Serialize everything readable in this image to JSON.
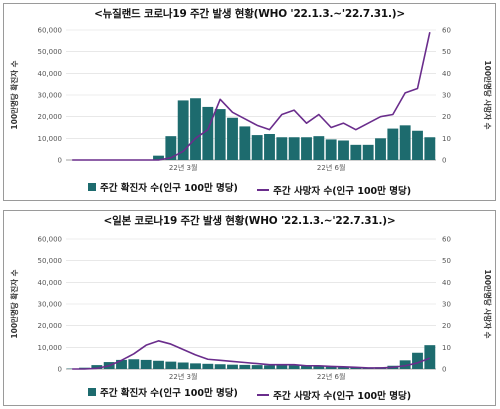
{
  "chart_data": [
    {
      "type": "bar",
      "title": "<뉴질랜드 코로나19 주간 발생 현황(WHO '22.1.3.~'22.7.31.)>",
      "ylabel": "100만명당 확진자 수",
      "y2label": "100만명당 사망자 수",
      "ylim": [
        0,
        60000
      ],
      "y2lim": [
        0,
        60
      ],
      "yticks": [
        "0",
        "10,000",
        "20,000",
        "30,000",
        "40,000",
        "50,000",
        "60,000"
      ],
      "y2ticks": [
        "0",
        "10",
        "20",
        "30",
        "40",
        "50",
        "60"
      ],
      "xticks": [
        {
          "label": "22년 3월",
          "index": 9
        },
        {
          "label": "22년 6월",
          "index": 21
        }
      ],
      "grid": true,
      "legend_position": "bottom",
      "series": [
        {
          "name": "주간 확진자 수(인구 100만 명당)",
          "kind": "bar",
          "axis": "left",
          "color": "#1d6b6e",
          "values": [
            0,
            0,
            0,
            0,
            0,
            0,
            0,
            2000,
            11000,
            27500,
            28500,
            24500,
            23500,
            19500,
            15500,
            11500,
            12000,
            10500,
            10500,
            10500,
            11000,
            9500,
            9000,
            7000,
            7000,
            10000,
            14500,
            16000,
            13500,
            10500
          ]
        },
        {
          "name": "주간 사망자 수(인구 100만 명당)",
          "kind": "line",
          "axis": "right",
          "color": "#6a2d8c",
          "values": [
            0,
            0,
            0,
            0,
            0,
            0,
            0,
            0,
            1,
            4,
            10,
            14,
            28,
            22,
            19,
            16,
            14,
            21,
            23,
            17,
            21,
            15,
            17,
            14,
            17,
            20,
            21,
            31,
            33,
            59
          ]
        }
      ]
    },
    {
      "type": "bar",
      "title": "<일본 코로나19 주간 발생 현황(WHO '22.1.3.~'22.7.31.)>",
      "ylabel": "100만명당 확진자 수",
      "y2label": "100만명당 사망자 수",
      "ylim": [
        0,
        60000
      ],
      "y2lim": [
        0,
        60
      ],
      "yticks": [
        "0",
        "10,000",
        "20,000",
        "30,000",
        "40,000",
        "50,000",
        "60,000"
      ],
      "y2ticks": [
        "0",
        "10",
        "20",
        "30",
        "40",
        "50",
        "60"
      ],
      "xticks": [
        {
          "label": "22년 3월",
          "index": 9
        },
        {
          "label": "22년 6월",
          "index": 21
        }
      ],
      "grid": true,
      "legend_position": "bottom",
      "series": [
        {
          "name": "주간 확진자 수(인구 100만 명당)",
          "kind": "bar",
          "axis": "left",
          "color": "#1d6b6e",
          "values": [
            200,
            600,
            1800,
            3200,
            4200,
            4500,
            4200,
            3800,
            3400,
            3000,
            2600,
            2400,
            2200,
            2000,
            1900,
            1800,
            1700,
            1700,
            1600,
            1500,
            1400,
            1200,
            1000,
            800,
            700,
            800,
            1500,
            4000,
            7500,
            11000
          ]
        },
        {
          "name": "주간 사망자 수(인구 100만 명당)",
          "kind": "line",
          "axis": "right",
          "color": "#6a2d8c",
          "values": [
            0,
            0,
            0.3,
            1.5,
            4,
            7,
            11,
            13,
            11.5,
            9,
            6.5,
            4.5,
            4,
            3.5,
            3,
            2.5,
            2,
            2,
            2,
            1.5,
            1.5,
            1.2,
            1,
            0.8,
            0.5,
            0.5,
            0.8,
            1.5,
            2.8,
            5
          ]
        }
      ]
    }
  ]
}
